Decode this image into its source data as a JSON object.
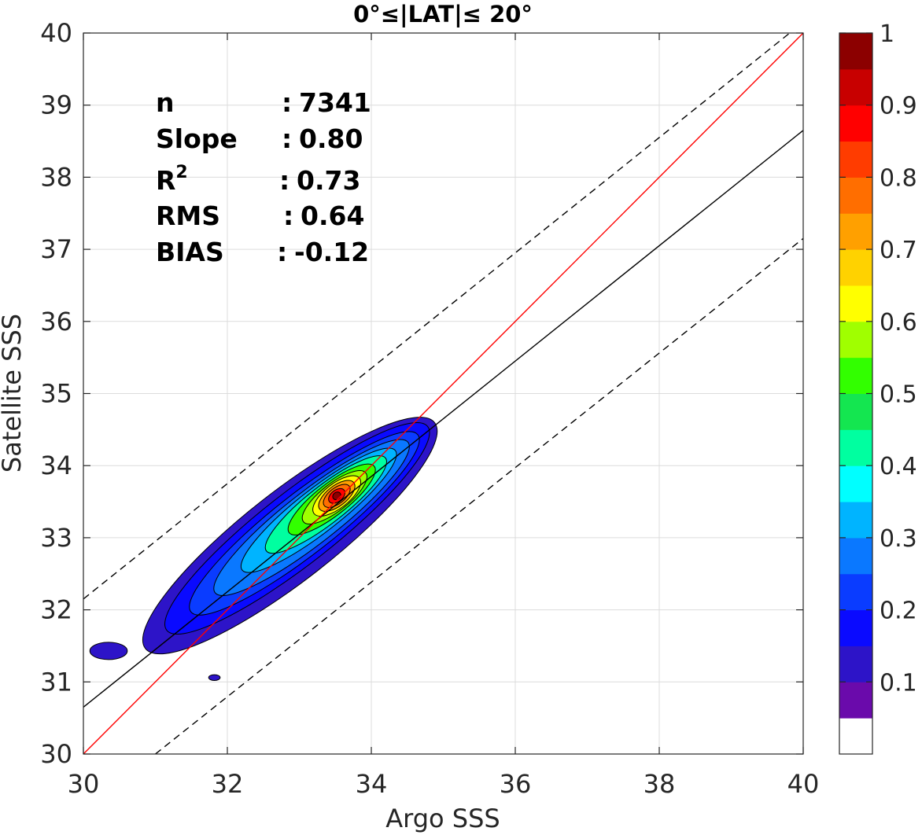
{
  "chart_data": {
    "type": "contour",
    "title": "0°≤|LAT|≤ 20°",
    "xlabel": "Argo SSS",
    "ylabel": "Satellite SSS",
    "xlim": [
      30,
      40
    ],
    "ylim": [
      30,
      40
    ],
    "xticks": [
      "30",
      "32",
      "34",
      "36",
      "38",
      "40"
    ],
    "yticks": [
      "30",
      "31",
      "32",
      "33",
      "34",
      "35",
      "36",
      "37",
      "38",
      "39",
      "40"
    ],
    "grid": true,
    "stats": {
      "rows": [
        {
          "label": "n",
          "sep": ":",
          "value": "7341"
        },
        {
          "label": "Slope",
          "sep": ":",
          "value": "0.80"
        },
        {
          "label": "R",
          "sup": "2",
          "sep": ":",
          "value": "0.73"
        },
        {
          "label": "RMS",
          "sep": ":",
          "value": "0.64"
        },
        {
          "label": "BIAS",
          "sep": ":",
          "value": "-0.12"
        }
      ]
    },
    "lines": {
      "one_to_one": {
        "color": "#ff0000",
        "points": [
          [
            30,
            30
          ],
          [
            40,
            40
          ]
        ]
      },
      "regression": {
        "color": "#000000",
        "points": [
          [
            30,
            30.65
          ],
          [
            40,
            38.65
          ]
        ]
      },
      "upper_dashed": {
        "color": "#000000",
        "points": [
          [
            30,
            32.15
          ],
          [
            40,
            40.15
          ]
        ]
      },
      "lower_dashed": {
        "color": "#000000",
        "points": [
          [
            31.0,
            30
          ],
          [
            40,
            37.15
          ]
        ]
      }
    },
    "density_peak": {
      "x": 33.52,
      "y": 33.58
    },
    "colorbar": {
      "ticks": [
        "0.1",
        "0.2",
        "0.3",
        "0.4",
        "0.5",
        "0.6",
        "0.7",
        "0.8",
        "0.9",
        "1"
      ],
      "colors": [
        "#ffffff",
        "#6a0aab",
        "#2d14c8",
        "#0a0aff",
        "#0a3cff",
        "#0a78ff",
        "#00b4ff",
        "#00ffff",
        "#00ffa0",
        "#14e650",
        "#32ff00",
        "#a0ff00",
        "#ffff00",
        "#ffd200",
        "#ffa000",
        "#ff6e00",
        "#ff3c00",
        "#ff0000",
        "#c80000",
        "#8c0000"
      ]
    }
  }
}
